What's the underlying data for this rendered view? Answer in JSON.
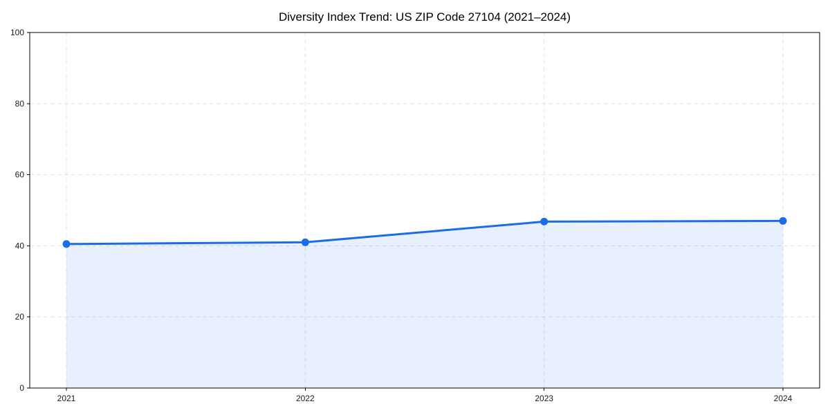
{
  "figure": {
    "background": "#ffffff"
  },
  "chart_data": {
    "type": "area",
    "title": "Diversity Index Trend: US ZIP Code 27104 (2021–2024)",
    "x": [
      "2021",
      "2022",
      "2023",
      "2024"
    ],
    "series": [
      {
        "name": "Diversity Index",
        "values": [
          40.5,
          41.0,
          46.8,
          47.0
        ]
      }
    ],
    "xlabel": "",
    "ylabel": "",
    "ylim": [
      0,
      100
    ],
    "yticks": [
      0,
      20,
      40,
      60,
      80,
      100
    ],
    "grid": true,
    "grid_style": "dashed",
    "legend": "none",
    "marker": "circle",
    "colors": {
      "line": "#1a6ce8",
      "marker": "#1a6ce8",
      "fill": "rgba(26,108,232,0.10)",
      "grid": "#e2e2e2",
      "axis": "#000000",
      "tick_label": "#1a1a1a",
      "title": "#000000",
      "plot_background": "#ffffff"
    }
  }
}
